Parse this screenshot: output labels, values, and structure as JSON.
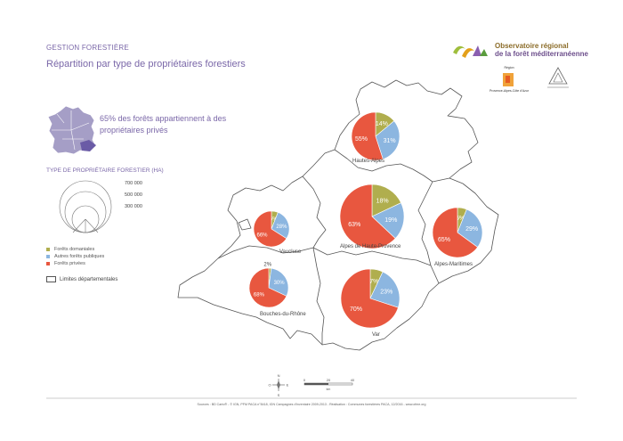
{
  "header": {
    "section": "GESTION FORESTIÈRE",
    "title": "Répartition par type de propriétaires forestiers"
  },
  "logo": {
    "line1": "Observatoire régional",
    "line2": "de la forêt méditerranéenne",
    "region_label": "Région",
    "region_name": "Provence-Alpes-Côte d'Azur"
  },
  "stat": {
    "text": "65% des forêts appartiennent à des propriétaires privés"
  },
  "legend": {
    "title": "TYPE DE PROPRIÉTAIRE FORESTIER (HA)",
    "sizes": [
      "700 000",
      "500 000",
      "300 000"
    ],
    "categories": [
      {
        "label": "Forêts domaniales",
        "color": "#b0ae4e"
      },
      {
        "label": "Autres forêts publiques",
        "color": "#8cb6e0"
      },
      {
        "label": "Forêts privées",
        "color": "#e8573f"
      }
    ],
    "limits": "Limites départementales"
  },
  "departments": [
    {
      "name": "Hautes-Alpes",
      "values": {
        "domaniales": 14,
        "autres_publiques": 31,
        "privees": 55
      }
    },
    {
      "name": "Alpes de Haute-Provence",
      "values": {
        "domaniales": 18,
        "autres_publiques": 19,
        "privees": 63
      }
    },
    {
      "name": "Alpes-Maritimes",
      "values": {
        "domaniales": 6,
        "autres_publiques": 29,
        "privees": 65
      }
    },
    {
      "name": "Vaucluse",
      "values": {
        "domaniales": 6,
        "autres_publiques": 28,
        "privees": 66
      }
    },
    {
      "name": "Bouches-du-Rhône",
      "values": {
        "domaniales": 2,
        "autres_publiques": 30,
        "privees": 68
      }
    },
    {
      "name": "Var",
      "values": {
        "domaniales": 7,
        "autres_publiques": 23,
        "privees": 70
      }
    }
  ],
  "compass": {
    "n": "N",
    "s": "S",
    "e": "E",
    "o": "O"
  },
  "scale": {
    "ticks": [
      "0",
      "20",
      "40"
    ],
    "unit": "km"
  },
  "source": "Sources : BD Carto® - © IGN, PFM PACA n°8418, IGN Campagnes d'inventaire 2009-2013 - Réalisation : Communes forestières PACA, 12/2016 - www.ofme.org"
}
